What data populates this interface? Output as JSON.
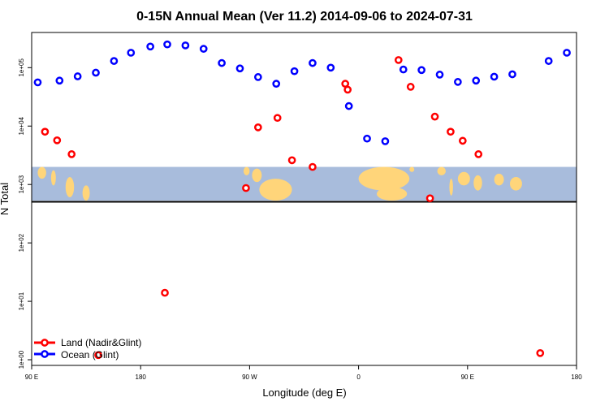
{
  "chart_data": {
    "type": "scatter",
    "title": "0-15N Annual Mean (Ver 11.2)   2014-09-06 to 2024-07-31",
    "xlabel": "Longitude (deg E)",
    "ylabel": "N Total",
    "x_ticks": [
      {
        "value": -90,
        "label": "90 E"
      },
      {
        "value": 0,
        "label": "180"
      },
      {
        "value": 90,
        "label": "90 W"
      },
      {
        "value": 180,
        "label": "0"
      },
      {
        "value": 270,
        "label": "90 E"
      },
      {
        "value": 360,
        "label": "180"
      }
    ],
    "y_scale": "log",
    "y_ticks": [
      {
        "value": 1,
        "label": "1e+00"
      },
      {
        "value": 10,
        "label": "1e+01"
      },
      {
        "value": 100,
        "label": "1e+02"
      },
      {
        "value": 1000,
        "label": "1e+03"
      },
      {
        "value": 10000,
        "label": "1e+04"
      },
      {
        "value": 100000,
        "label": "1e+05"
      }
    ],
    "xlim": [
      -90,
      360
    ],
    "ylim": [
      0.8,
      400000
    ],
    "grid": false,
    "legend_position": "bottom-left",
    "map_band": {
      "y_min": 530,
      "y_max": 2000
    },
    "series": [
      {
        "name": "Land (Nadir&Glint)",
        "color": "#ff0000",
        "points": [
          {
            "x": -79,
            "y": 8000
          },
          {
            "x": -69,
            "y": 5700
          },
          {
            "x": -57,
            "y": 3300
          },
          {
            "x": -35,
            "y": 1.2
          },
          {
            "x": 20,
            "y": 14
          },
          {
            "x": 87,
            "y": 870
          },
          {
            "x": 97,
            "y": 9500
          },
          {
            "x": 113,
            "y": 13800
          },
          {
            "x": 125,
            "y": 2600
          },
          {
            "x": 142,
            "y": 2000
          },
          {
            "x": 171,
            "y": 42000
          },
          {
            "x": 169,
            "y": 53000
          },
          {
            "x": 213,
            "y": 135000
          },
          {
            "x": 223,
            "y": 47000
          },
          {
            "x": 239,
            "y": 580
          },
          {
            "x": 243,
            "y": 14500
          },
          {
            "x": 256,
            "y": 8000
          },
          {
            "x": 266,
            "y": 5600
          },
          {
            "x": 279,
            "y": 3300
          },
          {
            "x": 330,
            "y": 1.3
          }
        ]
      },
      {
        "name": "Ocean (Glint)",
        "color": "#0000ff",
        "points": [
          {
            "x": -85,
            "y": 56000
          },
          {
            "x": -67,
            "y": 60000
          },
          {
            "x": -52,
            "y": 71000
          },
          {
            "x": -37,
            "y": 82000
          },
          {
            "x": -22,
            "y": 130000
          },
          {
            "x": -8,
            "y": 180000
          },
          {
            "x": 8,
            "y": 230000
          },
          {
            "x": 22,
            "y": 250000
          },
          {
            "x": 37,
            "y": 240000
          },
          {
            "x": 52,
            "y": 210000
          },
          {
            "x": 67,
            "y": 120000
          },
          {
            "x": 82,
            "y": 97000
          },
          {
            "x": 97,
            "y": 69000
          },
          {
            "x": 112,
            "y": 53000
          },
          {
            "x": 127,
            "y": 87000
          },
          {
            "x": 142,
            "y": 120000
          },
          {
            "x": 157,
            "y": 100000
          },
          {
            "x": 172,
            "y": 22000
          },
          {
            "x": 187,
            "y": 6100
          },
          {
            "x": 202,
            "y": 5500
          },
          {
            "x": 217,
            "y": 93000
          },
          {
            "x": 232,
            "y": 91000
          },
          {
            "x": 247,
            "y": 76000
          },
          {
            "x": 262,
            "y": 57000
          },
          {
            "x": 277,
            "y": 60000
          },
          {
            "x": 292,
            "y": 70000
          },
          {
            "x": 307,
            "y": 77000
          },
          {
            "x": 337,
            "y": 130000
          },
          {
            "x": 352,
            "y": 180000
          }
        ]
      }
    ]
  }
}
